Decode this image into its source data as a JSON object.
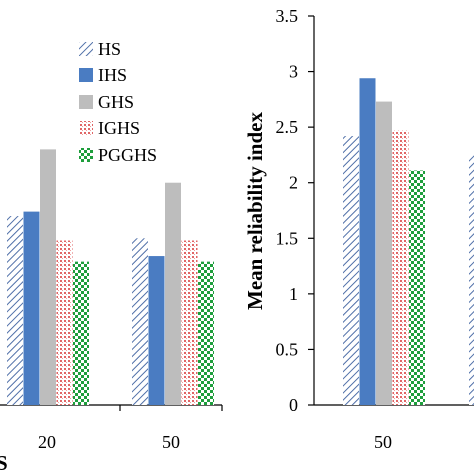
{
  "chart_data": [
    {
      "type": "bar",
      "title": "",
      "xlabel": "",
      "ylabel": "",
      "categories": [
        "20",
        "50"
      ],
      "series": [
        {
          "name": "HS",
          "values": [
            1.7,
            1.5
          ]
        },
        {
          "name": "IHS",
          "values": [
            1.74,
            1.34
          ]
        },
        {
          "name": "GHS",
          "values": [
            2.3,
            2.0
          ]
        },
        {
          "name": "IGHS",
          "values": [
            1.48,
            1.48
          ]
        },
        {
          "name": "PGGHS",
          "values": [
            1.29,
            1.29
          ]
        }
      ],
      "partial_axis_label": "S",
      "grid": false,
      "legend_position": "top-right"
    },
    {
      "type": "bar",
      "title": "",
      "xlabel": "",
      "ylabel": "Mean reliability index",
      "categories": [
        "50"
      ],
      "series": [
        {
          "name": "HS",
          "values": [
            2.42
          ]
        },
        {
          "name": "IHS",
          "values": [
            2.94
          ]
        },
        {
          "name": "GHS",
          "values": [
            2.73
          ]
        },
        {
          "name": "IGHS",
          "values": [
            2.47
          ]
        },
        {
          "name": "PGGHS",
          "values": [
            2.11
          ]
        }
      ],
      "ylim": [
        0,
        3.5
      ],
      "yticks": [
        "0",
        "0.5",
        "1",
        "1.5",
        "2",
        "2.5",
        "3",
        "3.5"
      ],
      "grid": false,
      "cut_bar_value": 2.25
    }
  ],
  "legend": [
    "HS",
    "IHS",
    "GHS",
    "IGHS",
    "PGGHS"
  ],
  "colors": {
    "HS": "#4f6fa8",
    "IHS": "#4a7cc2",
    "GHS": "#bdbdbd",
    "IGHS": "#d85a5a",
    "PGGHS": "#1e9e3c"
  }
}
